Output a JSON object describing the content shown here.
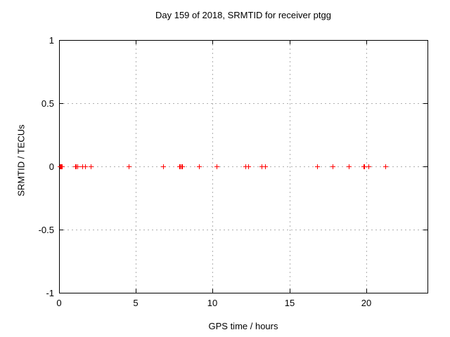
{
  "window": {
    "background": "#ffffff"
  },
  "chart_data": {
    "type": "scatter",
    "title": "Day 159 of 2018, SRMTID for receiver ptgg",
    "xlabel": "GPS time / hours",
    "ylabel": "SRMTID / TECUs",
    "xlim": [
      0,
      24
    ],
    "ylim": [
      -1,
      1
    ],
    "xticks": [
      0,
      5,
      10,
      15,
      20
    ],
    "yticks": [
      1,
      0.5,
      0,
      -0.5,
      -1
    ],
    "grid": true,
    "legend_position": "none",
    "marker_style": "plus",
    "marker_color": "#ff0000",
    "border_color": "#000000",
    "grid_color": "#b0b0b0",
    "series": [
      {
        "name": "SRMTID",
        "x": [
          0.05,
          0.1,
          0.15,
          0.2,
          1.05,
          1.1,
          1.2,
          1.5,
          1.7,
          2.05,
          4.55,
          6.8,
          7.85,
          7.9,
          7.95,
          8.0,
          9.1,
          10.25,
          12.15,
          12.3,
          13.2,
          13.4,
          16.8,
          17.8,
          18.85,
          19.85,
          19.9,
          20.15,
          21.25
        ],
        "y": [
          0,
          0,
          0,
          0,
          0,
          0,
          0,
          0,
          0,
          0,
          0,
          0,
          0,
          0,
          0,
          0,
          0,
          0,
          0,
          0,
          0,
          0,
          0,
          0,
          0,
          0,
          0,
          0,
          0
        ]
      }
    ]
  }
}
